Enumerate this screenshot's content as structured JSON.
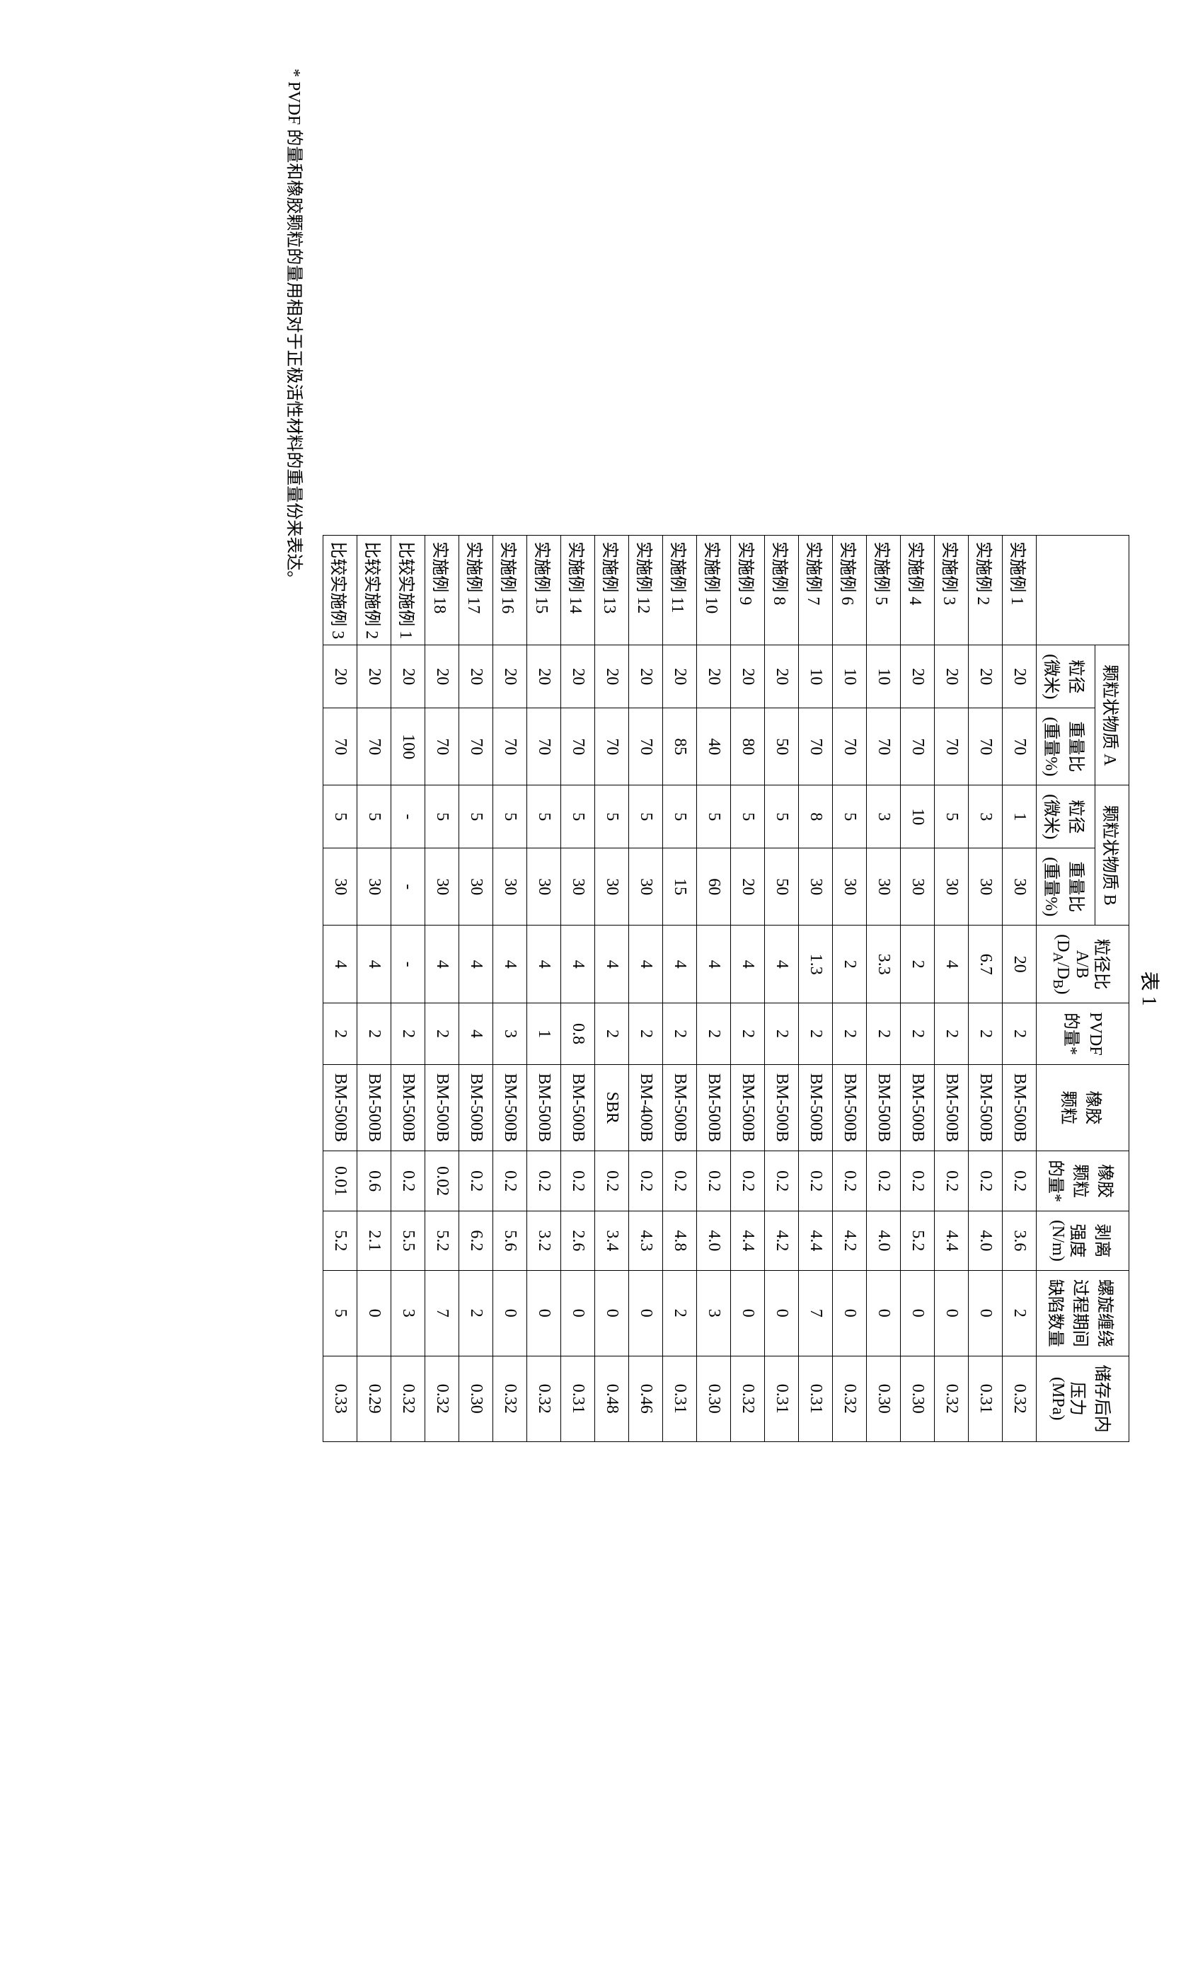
{
  "title": "表 1",
  "headers": {
    "row_label": "",
    "groupA": "颗粒状物质 A",
    "groupB": "颗粒状物质 B",
    "particle_size": "粒径 (微米)",
    "weight_ratio": "重量比 (重量%)",
    "diameter_ratio": "粒径比 A/B (D_A/D_B)",
    "pvdf_amount": "PVDF 的量*",
    "rubber_particles": "橡胶 颗粒",
    "rubber_amount": "橡胶 颗粒 的量*",
    "peel_strength": "剥离 强度 (N/m)",
    "defects": "螺旋缠绕 过程期间 缺陷数量",
    "pressure": "储存后内 压力 (MPa)"
  },
  "rows": [
    {
      "label": "实施例 1",
      "a_size": "20",
      "a_wt": "70",
      "b_size": "1",
      "b_wt": "30",
      "ratio": "20",
      "pvdf": "2",
      "rubber": "BM-500B",
      "rubber_amt": "0.2",
      "peel": "3.6",
      "defects": "2",
      "pressure": "0.32"
    },
    {
      "label": "实施例 2",
      "a_size": "20",
      "a_wt": "70",
      "b_size": "3",
      "b_wt": "30",
      "ratio": "6.7",
      "pvdf": "2",
      "rubber": "BM-500B",
      "rubber_amt": "0.2",
      "peel": "4.0",
      "defects": "0",
      "pressure": "0.31"
    },
    {
      "label": "实施例 3",
      "a_size": "20",
      "a_wt": "70",
      "b_size": "5",
      "b_wt": "30",
      "ratio": "4",
      "pvdf": "2",
      "rubber": "BM-500B",
      "rubber_amt": "0.2",
      "peel": "4.4",
      "defects": "0",
      "pressure": "0.32"
    },
    {
      "label": "实施例 4",
      "a_size": "20",
      "a_wt": "70",
      "b_size": "10",
      "b_wt": "30",
      "ratio": "2",
      "pvdf": "2",
      "rubber": "BM-500B",
      "rubber_amt": "0.2",
      "peel": "5.2",
      "defects": "0",
      "pressure": "0.30"
    },
    {
      "label": "实施例 5",
      "a_size": "10",
      "a_wt": "70",
      "b_size": "3",
      "b_wt": "30",
      "ratio": "3.3",
      "pvdf": "2",
      "rubber": "BM-500B",
      "rubber_amt": "0.2",
      "peel": "4.0",
      "defects": "0",
      "pressure": "0.30"
    },
    {
      "label": "实施例 6",
      "a_size": "10",
      "a_wt": "70",
      "b_size": "5",
      "b_wt": "30",
      "ratio": "2",
      "pvdf": "2",
      "rubber": "BM-500B",
      "rubber_amt": "0.2",
      "peel": "4.2",
      "defects": "0",
      "pressure": "0.32"
    },
    {
      "label": "实施例 7",
      "a_size": "10",
      "a_wt": "70",
      "b_size": "8",
      "b_wt": "30",
      "ratio": "1.3",
      "pvdf": "2",
      "rubber": "BM-500B",
      "rubber_amt": "0.2",
      "peel": "4.4",
      "defects": "7",
      "pressure": "0.31"
    },
    {
      "label": "实施例 8",
      "a_size": "20",
      "a_wt": "50",
      "b_size": "5",
      "b_wt": "50",
      "ratio": "4",
      "pvdf": "2",
      "rubber": "BM-500B",
      "rubber_amt": "0.2",
      "peel": "4.2",
      "defects": "0",
      "pressure": "0.31"
    },
    {
      "label": "实施例 9",
      "a_size": "20",
      "a_wt": "80",
      "b_size": "5",
      "b_wt": "20",
      "ratio": "4",
      "pvdf": "2",
      "rubber": "BM-500B",
      "rubber_amt": "0.2",
      "peel": "4.4",
      "defects": "0",
      "pressure": "0.32"
    },
    {
      "label": "实施例 10",
      "a_size": "20",
      "a_wt": "40",
      "b_size": "5",
      "b_wt": "60",
      "ratio": "4",
      "pvdf": "2",
      "rubber": "BM-500B",
      "rubber_amt": "0.2",
      "peel": "4.0",
      "defects": "3",
      "pressure": "0.30"
    },
    {
      "label": "实施例 11",
      "a_size": "20",
      "a_wt": "85",
      "b_size": "5",
      "b_wt": "15",
      "ratio": "4",
      "pvdf": "2",
      "rubber": "BM-500B",
      "rubber_amt": "0.2",
      "peel": "4.8",
      "defects": "2",
      "pressure": "0.31"
    },
    {
      "label": "实施例 12",
      "a_size": "20",
      "a_wt": "70",
      "b_size": "5",
      "b_wt": "30",
      "ratio": "4",
      "pvdf": "2",
      "rubber": "BM-400B",
      "rubber_amt": "0.2",
      "peel": "4.3",
      "defects": "0",
      "pressure": "0.46"
    },
    {
      "label": "实施例 13",
      "a_size": "20",
      "a_wt": "70",
      "b_size": "5",
      "b_wt": "30",
      "ratio": "4",
      "pvdf": "2",
      "rubber": "SBR",
      "rubber_amt": "0.2",
      "peel": "3.4",
      "defects": "0",
      "pressure": "0.48"
    },
    {
      "label": "实施例 14",
      "a_size": "20",
      "a_wt": "70",
      "b_size": "5",
      "b_wt": "30",
      "ratio": "4",
      "pvdf": "0.8",
      "rubber": "BM-500B",
      "rubber_amt": "0.2",
      "peel": "2.6",
      "defects": "0",
      "pressure": "0.31"
    },
    {
      "label": "实施例 15",
      "a_size": "20",
      "a_wt": "70",
      "b_size": "5",
      "b_wt": "30",
      "ratio": "4",
      "pvdf": "1",
      "rubber": "BM-500B",
      "rubber_amt": "0.2",
      "peel": "3.2",
      "defects": "0",
      "pressure": "0.32"
    },
    {
      "label": "实施例 16",
      "a_size": "20",
      "a_wt": "70",
      "b_size": "5",
      "b_wt": "30",
      "ratio": "4",
      "pvdf": "3",
      "rubber": "BM-500B",
      "rubber_amt": "0.2",
      "peel": "5.6",
      "defects": "0",
      "pressure": "0.32"
    },
    {
      "label": "实施例 17",
      "a_size": "20",
      "a_wt": "70",
      "b_size": "5",
      "b_wt": "30",
      "ratio": "4",
      "pvdf": "4",
      "rubber": "BM-500B",
      "rubber_amt": "0.2",
      "peel": "6.2",
      "defects": "2",
      "pressure": "0.30"
    },
    {
      "label": "实施例 18",
      "a_size": "20",
      "a_wt": "70",
      "b_size": "5",
      "b_wt": "30",
      "ratio": "4",
      "pvdf": "2",
      "rubber": "BM-500B",
      "rubber_amt": "0.02",
      "peel": "5.2",
      "defects": "7",
      "pressure": "0.32"
    },
    {
      "label": "比较实施例 1",
      "a_size": "20",
      "a_wt": "100",
      "b_size": "-",
      "b_wt": "-",
      "ratio": "-",
      "pvdf": "2",
      "rubber": "BM-500B",
      "rubber_amt": "0.2",
      "peel": "5.5",
      "defects": "3",
      "pressure": "0.32"
    },
    {
      "label": "比较实施例 2",
      "a_size": "20",
      "a_wt": "70",
      "b_size": "5",
      "b_wt": "30",
      "ratio": "4",
      "pvdf": "2",
      "rubber": "BM-500B",
      "rubber_amt": "0.6",
      "peel": "2.1",
      "defects": "0",
      "pressure": "0.29"
    },
    {
      "label": "比较实施例 3",
      "a_size": "20",
      "a_wt": "70",
      "b_size": "5",
      "b_wt": "30",
      "ratio": "4",
      "pvdf": "2",
      "rubber": "BM-500B",
      "rubber_amt": "0.01",
      "peel": "5.2",
      "defects": "5",
      "pressure": "0.33"
    }
  ],
  "footnote": "* PVDF 的量和橡胶颗粒的量用相对于正极活性材料的重量份来表达。"
}
